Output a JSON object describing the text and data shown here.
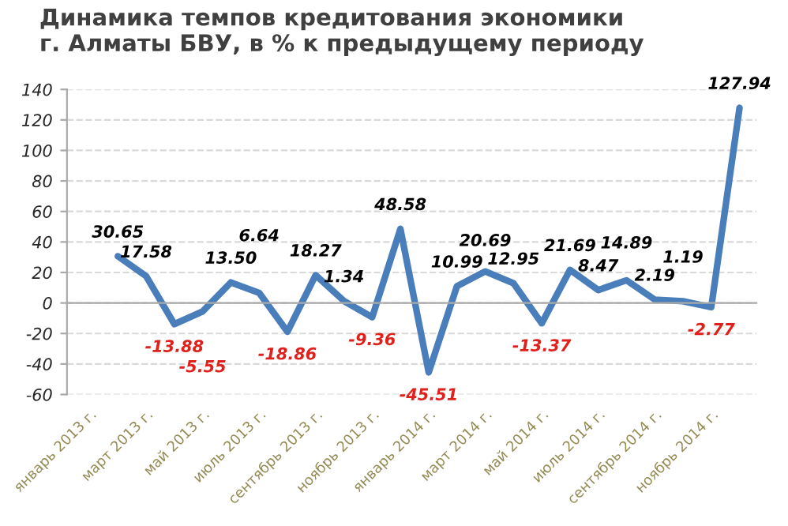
{
  "chart_data": {
    "type": "line",
    "title": "Динамика темпов кредитования экономики\nг. Алматы БВУ, в % к предыдущему периоду",
    "categories": [
      "январь 2013 г.",
      null,
      "март 2013 г.",
      null,
      "май 2013 г.",
      null,
      "июль 2013 г.",
      null,
      "сентябрь 2013 г.",
      null,
      "ноябрь 2013 г.",
      null,
      "январь 2014 г.",
      null,
      "март 2014 г.",
      null,
      "май 2014 г.",
      null,
      "июль 2014 г.",
      null,
      "сентябрь 2014 г.",
      null,
      "ноябрь 2014 г.",
      null
    ],
    "series": [
      {
        "color": "#4a7ebb",
        "values": [
          null,
          30.65,
          17.58,
          -13.88,
          -5.55,
          13.5,
          6.64,
          -18.86,
          18.27,
          1.34,
          -9.36,
          48.58,
          -45.51,
          10.99,
          20.69,
          12.95,
          -13.37,
          21.69,
          8.47,
          14.89,
          2.19,
          1.19,
          -2.77,
          127.94
        ]
      }
    ],
    "ylim": [
      -60,
      140
    ],
    "yticks": [
      -60,
      -40,
      -20,
      0,
      20,
      40,
      60,
      80,
      100,
      120,
      140
    ],
    "value_labels": [
      null,
      "30.65",
      "17.58",
      "-13.88",
      "-5.55",
      "13.50",
      "6.64",
      "-18.86",
      "18.27",
      "1.34",
      "-9.36",
      "48.58",
      "-45.51",
      "10.99",
      "20.69",
      "12.95",
      "-13.37",
      "21.69",
      "8.47",
      "14.89",
      "2.19",
      "1.19",
      "-2.77",
      "127.94"
    ],
    "grid": "y",
    "marker": "none",
    "line_style": "solid"
  }
}
